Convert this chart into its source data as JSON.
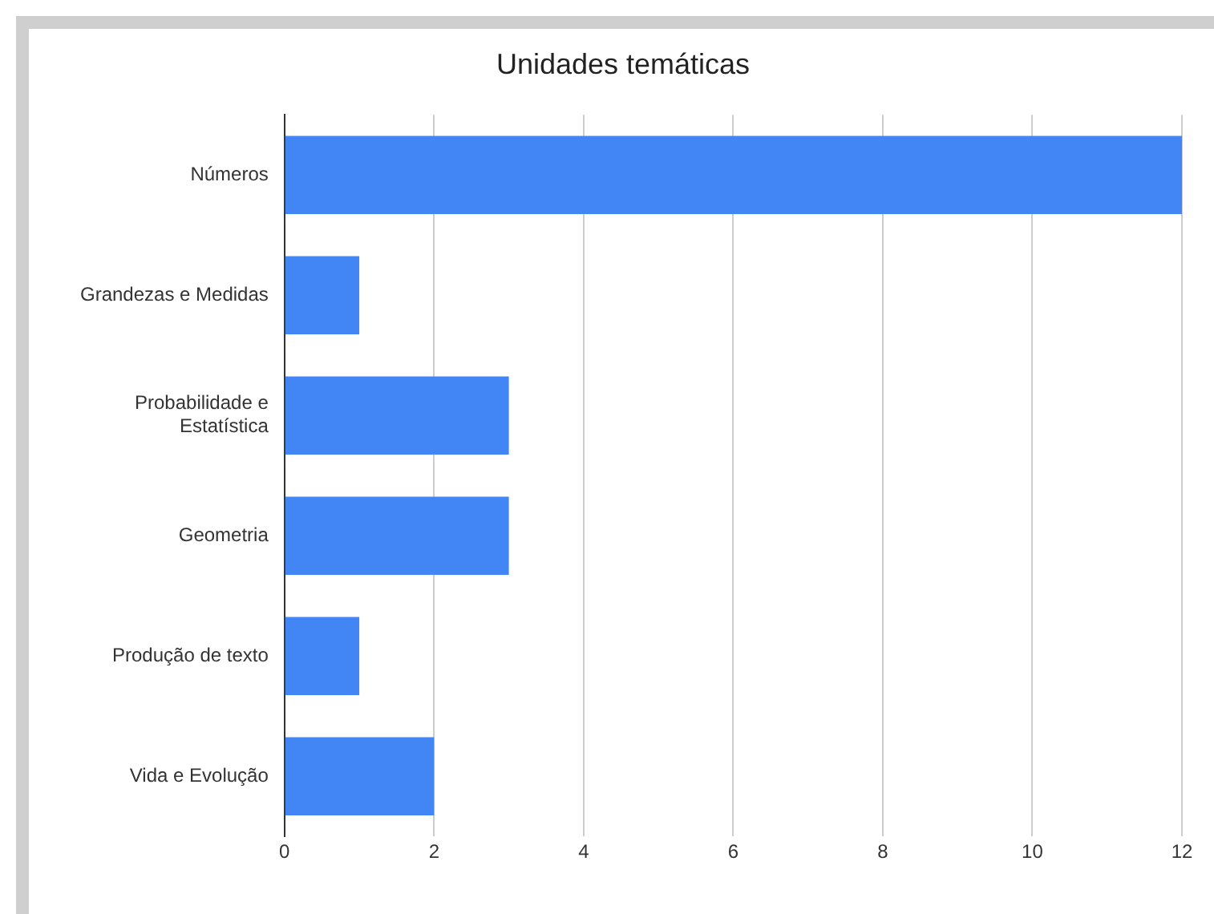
{
  "chart_data": {
    "type": "bar",
    "orientation": "horizontal",
    "title": "Unidades temáticas",
    "categories": [
      "Números",
      "Grandezas e Medidas",
      "Probabilidade e Estatística",
      "Geometria",
      "Produção de texto",
      "Vida e Evolução"
    ],
    "values": [
      12,
      1,
      3,
      3,
      1,
      2
    ],
    "color": "#4285f4",
    "xlim": [
      0,
      12
    ],
    "xticks": [
      0,
      2,
      4,
      6,
      8,
      10,
      12
    ],
    "grid": "x"
  }
}
